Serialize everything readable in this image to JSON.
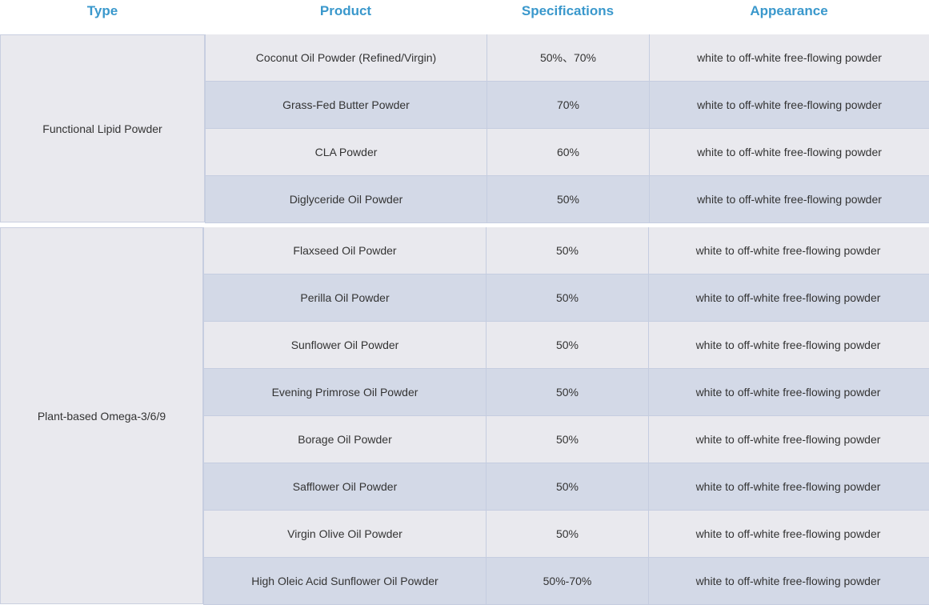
{
  "header": {
    "type": "Type",
    "product": "Product",
    "specifications": "Specifications",
    "appearance": "Appearance"
  },
  "groups": [
    {
      "type": "Functional Lipid Powder",
      "rows": [
        {
          "product": "Coconut Oil Powder (Refined/Virgin)",
          "spec": "50%、70%",
          "appearance": "white to off-white free-flowing powder"
        },
        {
          "product": "Grass-Fed Butter Powder",
          "spec": "70%",
          "appearance": "white to off-white free-flowing powder"
        },
        {
          "product": "CLA Powder",
          "spec": "60%",
          "appearance": "white to off-white free-flowing powder"
        },
        {
          "product": "Diglyceride Oil Powder",
          "spec": "50%",
          "appearance": "white to off-white free-flowing powder"
        }
      ]
    },
    {
      "type": "Plant-based Omega-3/6/9",
      "rows": [
        {
          "product": "Flaxseed Oil Powder",
          "spec": "50%",
          "appearance": "white to off-white free-flowing powder"
        },
        {
          "product": "Perilla Oil Powder",
          "spec": "50%",
          "appearance": "white to off-white free-flowing powder"
        },
        {
          "product": "Sunflower Oil Powder",
          "spec": "50%",
          "appearance": "white to off-white free-flowing powder"
        },
        {
          "product": "Evening Primrose Oil Powder",
          "spec": "50%",
          "appearance": "white to off-white free-flowing powder"
        },
        {
          "product": "Borage Oil Powder",
          "spec": "50%",
          "appearance": "white to off-white free-flowing powder"
        },
        {
          "product": "Safflower Oil Powder",
          "spec": "50%",
          "appearance": "white to off-white free-flowing powder"
        },
        {
          "product": "Virgin Olive Oil Powder",
          "spec": "50%",
          "appearance": "white to off-white free-flowing powder"
        },
        {
          "product": "High Oleic Acid Sunflower Oil Powder",
          "spec": "50%-70%",
          "appearance": "white to off-white free-flowing powder"
        }
      ]
    }
  ]
}
